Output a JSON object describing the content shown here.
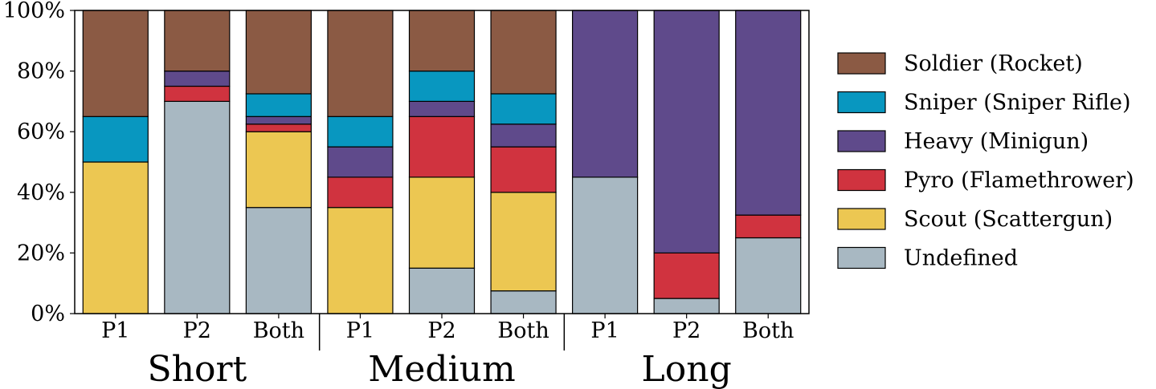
{
  "chart_data": {
    "type": "bar",
    "stacked": true,
    "categories": [
      "P1",
      "P2",
      "Both",
      "P1",
      "P2",
      "Both",
      "P1",
      "P2",
      "Both"
    ],
    "groups": [
      {
        "label": "Short",
        "members": [
          "P1",
          "P2",
          "Both"
        ]
      },
      {
        "label": "Medium",
        "members": [
          "P1",
          "P2",
          "Both"
        ]
      },
      {
        "label": "Long",
        "members": [
          "P1",
          "P2",
          "Both"
        ]
      }
    ],
    "series": [
      {
        "name": "Undefined",
        "color": "#a8b8c2",
        "values": [
          0,
          70,
          35,
          0,
          15,
          7.5,
          45,
          5,
          25
        ]
      },
      {
        "name": "Scout (Scattergun)",
        "color": "#ecc752",
        "values": [
          50,
          0,
          25,
          35,
          30,
          32.5,
          0,
          0,
          0
        ]
      },
      {
        "name": "Pyro (Flamethrower)",
        "color": "#d0333f",
        "values": [
          0,
          5,
          2.5,
          10,
          20,
          15,
          0,
          15,
          7.5
        ]
      },
      {
        "name": "Heavy (Minigun)",
        "color": "#5f4a8b",
        "values": [
          0,
          5,
          2.5,
          10,
          5,
          7.5,
          55,
          80,
          67.5
        ]
      },
      {
        "name": "Sniper (Sniper Rifle)",
        "color": "#0897c0",
        "values": [
          15,
          0,
          7.5,
          10,
          10,
          10,
          0,
          0,
          0
        ]
      },
      {
        "name": "Soldier (Rocket)",
        "color": "#8b5a44",
        "values": [
          35,
          20,
          27.5,
          35,
          20,
          27.5,
          0,
          0,
          0
        ]
      }
    ],
    "legend_order": [
      "Soldier (Rocket)",
      "Sniper (Sniper Rifle)",
      "Heavy (Minigun)",
      "Pyro (Flamethrower)",
      "Scout (Scattergun)",
      "Undefined"
    ],
    "ylim": [
      0,
      100
    ],
    "yticks": [
      "0%",
      "20%",
      "40%",
      "60%",
      "80%",
      "100%"
    ],
    "grid": false,
    "legend_position": "right"
  }
}
